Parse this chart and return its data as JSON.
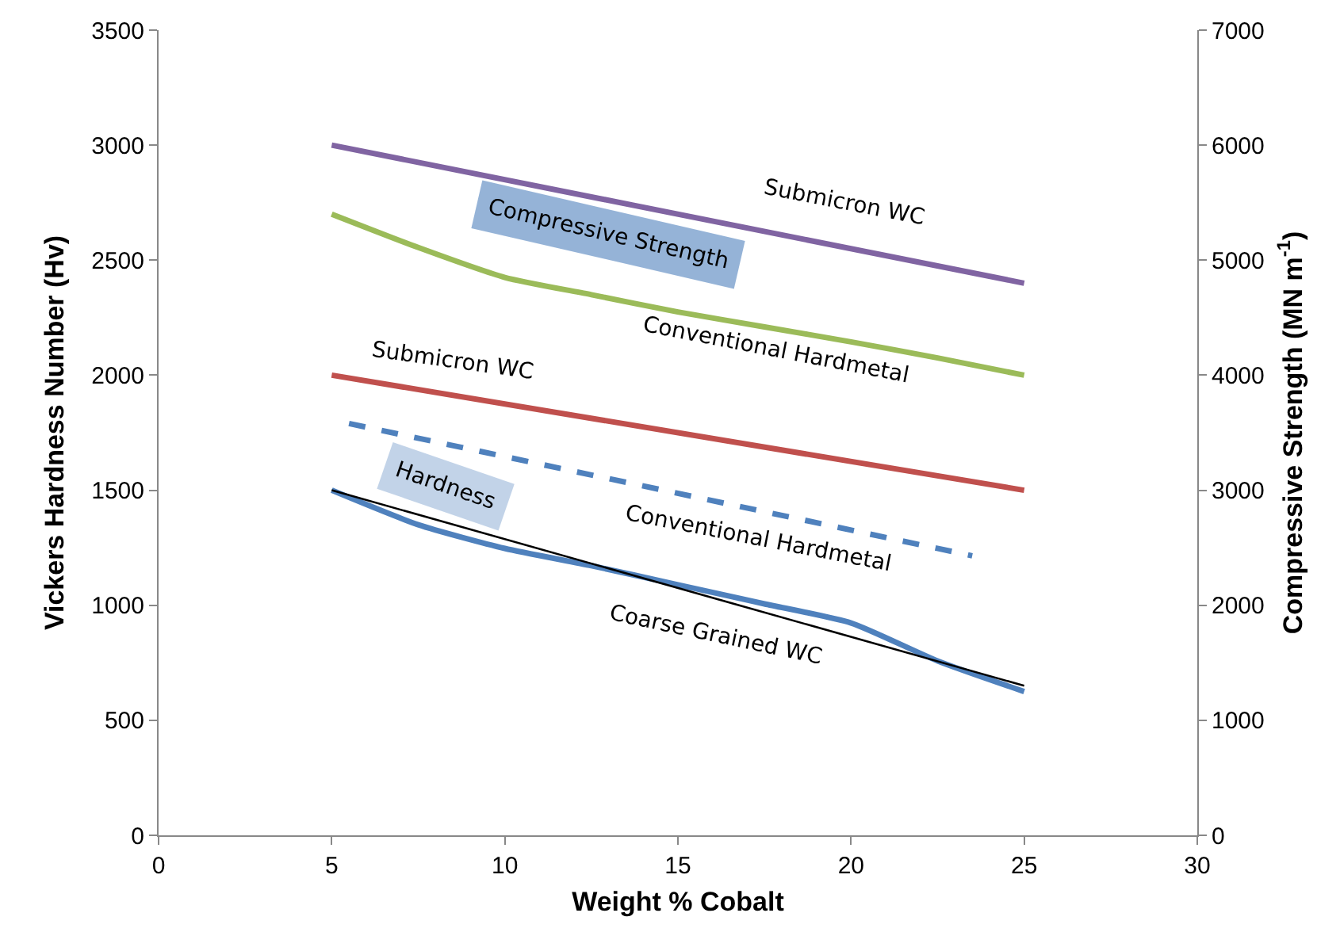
{
  "chart_data": {
    "type": "line",
    "xlabel": "Weight % Cobalt",
    "ylabel": "Vickers Hardness Number (Hv)",
    "y2label": "Compressive Strength (MN m$^{-1}$)",
    "xlim": [
      0,
      30
    ],
    "xticks": [
      0,
      5,
      10,
      15,
      20,
      25,
      30
    ],
    "ylim": [
      0,
      3500
    ],
    "yticks": [
      0,
      500,
      1000,
      1500,
      2000,
      2500,
      3000,
      3500
    ],
    "y2lim": [
      0,
      7000
    ],
    "y2ticks": [
      0,
      1000,
      2000,
      3000,
      4000,
      5000,
      6000,
      7000
    ],
    "grid": false,
    "legend": false,
    "marker": "none",
    "series": [
      {
        "name": "Submicron WC",
        "color": "#8064a2",
        "axis": "y2",
        "x": [
          5,
          25
        ],
        "values": [
          6000,
          4800
        ]
      },
      {
        "name": "Conventional Hardmetal",
        "color": "#9bbb59",
        "axis": "y2",
        "x": [
          5,
          7.5,
          10,
          12.5,
          15,
          17.5,
          20,
          22.5,
          25
        ],
        "values": [
          5400,
          5110,
          4850,
          4700,
          4550,
          4420,
          4290,
          4150,
          4000
        ]
      },
      {
        "name": "Submicron WC",
        "color": "#c0504d",
        "x": [
          5,
          25
        ],
        "values": [
          2000,
          1500
        ]
      },
      {
        "name": "Conventional Hardmetal",
        "color": "#4f81bd",
        "line_style": "dashed",
        "x": [
          5.5,
          23.5
        ],
        "values": [
          1790,
          1215
        ]
      },
      {
        "name": "Coarse Grained WC",
        "color": "#4f81bd",
        "x": [
          5,
          7.5,
          10,
          12.5,
          15,
          17.5,
          20,
          22.5,
          25
        ],
        "values": [
          1500,
          1350,
          1247,
          1172,
          1089,
          1006,
          923,
          758,
          625
        ]
      },
      {
        "color": "#000000",
        "x": [
          5,
          25
        ],
        "values": [
          1500,
          650
        ]
      }
    ],
    "annotations": [
      "Compressive Strength",
      "Hardness"
    ]
  }
}
